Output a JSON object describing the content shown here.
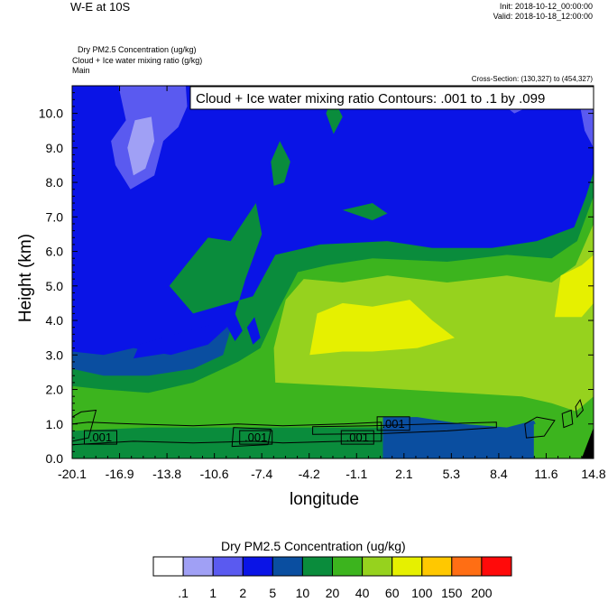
{
  "header": {
    "title": "W-E at 10S",
    "init": "Init: 2018-10-12_00:00:00",
    "valid": "Valid: 2018-10-18_12:00:00"
  },
  "meta_lines": [
    "Dry PM2.5 Concentration   (ug/kg)",
    "Cloud + Ice water mixing ratio   (g/kg)",
    "Main"
  ],
  "cross_section": "Cross-Section: (130,327) to (454,327)",
  "colors": {
    "bins": [
      "#ffffff",
      "#a0a0f5",
      "#5a5af0",
      "#0a14e6",
      "#0a4ea0",
      "#0a8c3c",
      "#3cb41e",
      "#96d21e",
      "#e6f000",
      "#ffc800",
      "#ff6e14",
      "#ff0a0a"
    ],
    "contour": "#000000"
  },
  "chart_data": {
    "type": "heatmap",
    "title": "Cloud + Ice water mixing ratio Contours: .001 to .1 by .099",
    "xlabel": "longitude",
    "ylabel": "Height (km)",
    "xlim": [
      -20.1,
      14.8
    ],
    "ylim": [
      0.0,
      10.8
    ],
    "x_ticks": [
      "-20.1",
      "-16.9",
      "-13.8",
      "-10.6",
      "-7.4",
      "-4.2",
      "-1.1",
      "2.1",
      "5.3",
      "8.4",
      "11.6",
      "14.8"
    ],
    "y_ticks": [
      "0.0",
      "1.0",
      "2.0",
      "3.0",
      "4.0",
      "5.0",
      "6.0",
      "7.0",
      "8.0",
      "9.0",
      "10.0"
    ],
    "colorbar": {
      "title": "Dry PM2.5 Concentration  (ug/kg)",
      "levels": [
        ".1",
        "1",
        "2",
        "5",
        "10",
        "20",
        "40",
        "60",
        "100",
        "150",
        "200"
      ]
    },
    "contour_labels": [
      {
        "text": ".001",
        "x": -18.2,
        "y": 0.6
      },
      {
        "text": ".001",
        "x": -7.8,
        "y": 0.6
      },
      {
        "text": ".001",
        "x": -1.0,
        "y": 0.6
      },
      {
        "text": ".001",
        "x": 1.4,
        "y": 1.0
      }
    ]
  }
}
